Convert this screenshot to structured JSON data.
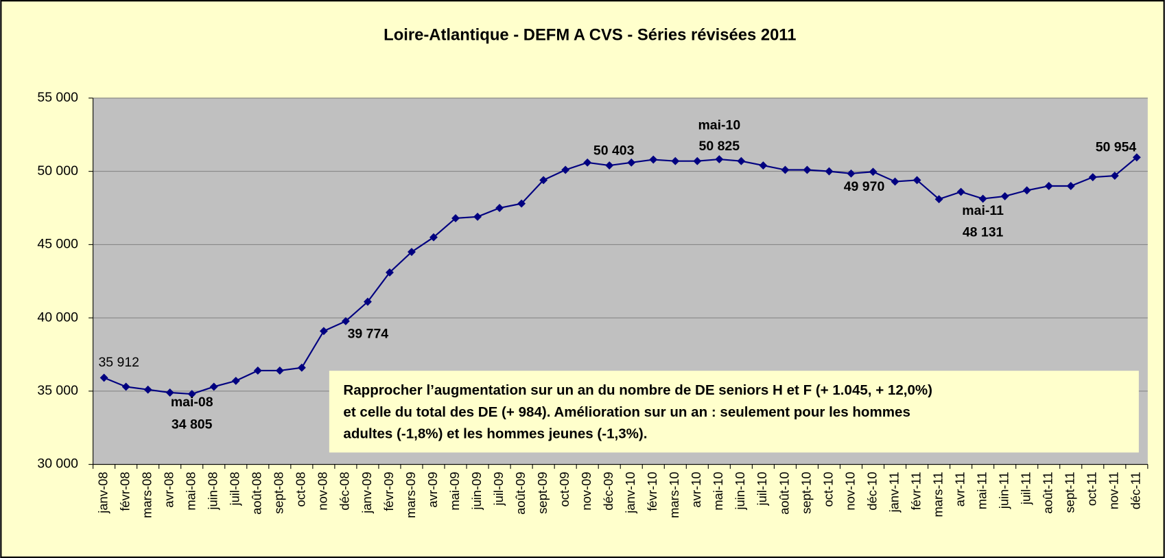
{
  "chart_data": {
    "type": "line",
    "title": "Loire-Atlantique - DEFM A CVS - Séries révisées 2011",
    "categories": [
      "janv-08",
      "févr-08",
      "mars-08",
      "avr-08",
      "mai-08",
      "juin-08",
      "juil-08",
      "août-08",
      "sept-08",
      "oct-08",
      "nov-08",
      "déc-08",
      "janv-09",
      "févr-09",
      "mars-09",
      "avr-09",
      "mai-09",
      "juin-09",
      "juil-09",
      "août-09",
      "sept-09",
      "oct-09",
      "nov-09",
      "déc-09",
      "janv-10",
      "févr-10",
      "mars-10",
      "avr-10",
      "mai-10",
      "juin-10",
      "juil-10",
      "août-10",
      "sept-10",
      "oct-10",
      "nov-10",
      "déc-10",
      "janv-11",
      "févr-11",
      "mars-11",
      "avr-11",
      "mai-11",
      "juin-11",
      "juil-11",
      "août-11",
      "sept-11",
      "oct-11",
      "nov-11",
      "déc-11"
    ],
    "series": [
      {
        "name": "DEFM A CVS",
        "color": "#000080",
        "values": [
          35912,
          35300,
          35100,
          34900,
          34805,
          35300,
          35700,
          36400,
          36400,
          36600,
          39100,
          39774,
          41100,
          43100,
          44500,
          45500,
          46800,
          46900,
          47500,
          47800,
          49400,
          50100,
          50600,
          50403,
          50600,
          50800,
          50700,
          50700,
          50825,
          50700,
          50400,
          50100,
          50100,
          50000,
          49850,
          49970,
          49300,
          49400,
          48100,
          48600,
          48131,
          48300,
          48700,
          49000,
          49000,
          49600,
          49700,
          50954
        ],
        "value_labels": [
          "35 912",
          null,
          null,
          null,
          "34 805",
          null,
          null,
          null,
          null,
          null,
          null,
          "39 774",
          null,
          null,
          null,
          null,
          null,
          null,
          null,
          null,
          null,
          null,
          null,
          "50 403",
          null,
          null,
          null,
          null,
          "50 825",
          null,
          null,
          null,
          null,
          null,
          null,
          "49 970",
          null,
          null,
          null,
          null,
          "48 131",
          null,
          null,
          null,
          null,
          null,
          null,
          "50 954"
        ],
        "label_colors": [
          "#000000",
          null,
          null,
          null,
          "#0000ff",
          null,
          null,
          null,
          null,
          null,
          null,
          "#000000",
          null,
          null,
          null,
          null,
          null,
          null,
          null,
          null,
          null,
          null,
          null,
          "#000000",
          null,
          null,
          null,
          null,
          "#ff0000",
          null,
          null,
          null,
          null,
          null,
          null,
          "#000000",
          null,
          null,
          null,
          null,
          "#0000ff",
          null,
          null,
          null,
          null,
          null,
          null,
          "#ff0000"
        ]
      }
    ],
    "callout_categories": [
      "mai-08",
      "mai-10",
      "mai-11"
    ],
    "ylim": [
      30000,
      55000
    ],
    "yticks": [
      {
        "value": 30000,
        "label": "30 000"
      },
      {
        "value": 35000,
        "label": "35 000"
      },
      {
        "value": 40000,
        "label": "40 000"
      },
      {
        "value": 45000,
        "label": "45 000"
      },
      {
        "value": 50000,
        "label": "50 000"
      },
      {
        "value": 55000,
        "label": "55 000"
      }
    ],
    "grid": true,
    "annotation": [
      "Rapprocher l’augmentation sur un an du nombre de DE seniors H et F (+ 1.045, + 12,0%)",
      "et celle du total des DE (+ 984). Amélioration sur un an : seulement pour les hommes",
      "adultes (-1,8%) et les hommes jeunes (-1,3%)."
    ]
  }
}
